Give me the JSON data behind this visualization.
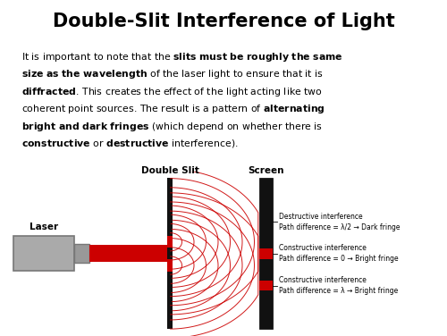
{
  "title": "Double-Slit Interference of Light",
  "title_bg": "#add8e6",
  "title_color": "#000000",
  "title_fontsize": 15,
  "body_bg": "#faebd7",
  "label_laser": "Laser",
  "label_slit": "Double Slit",
  "label_screen": "Screen",
  "annot1": "Destructive interference\nPath difference = λ/2 → Dark fringe",
  "annot2": "Constructive interference\nPath difference = 0 → Bright fringe",
  "annot3": "Constructive interference\nPath difference = λ → Bright fringe",
  "red": "#cc0000",
  "gray_light": "#aaaaaa",
  "gray_dark": "#777777",
  "black": "#111111",
  "white": "#ffffff"
}
